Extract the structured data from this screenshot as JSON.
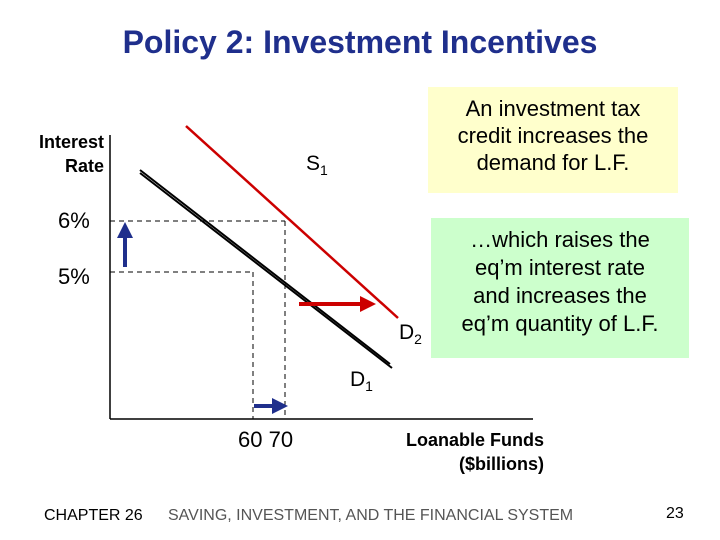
{
  "title": "Policy 2:  Investment Incentives",
  "axes": {
    "y_label_line1": "Interest",
    "y_label_line2": "Rate",
    "x_label_line1": "Loanable Funds",
    "x_label_line2": "($billions)",
    "y_ticks": [
      "6%",
      "5%"
    ],
    "x_ticks": "60 70"
  },
  "curves": {
    "supply_label": "S",
    "supply_sub": "1",
    "demand1_label": "D",
    "demand1_sub": "1",
    "demand2_label": "D",
    "demand2_sub": "2"
  },
  "notes": {
    "note1": [
      "An investment tax",
      "credit increases the",
      "demand for L.F."
    ],
    "note2": [
      "…which raises the",
      "eq’m interest rate",
      "and increases the",
      "eq’m quantity of L.F."
    ]
  },
  "colors": {
    "title": "#1f2f8c",
    "demand2_line": "#cc0000",
    "shift_arrow": "#cc0000",
    "move_arrow": "#1f2f8c",
    "note1_bg": "#ffffcc",
    "note2_bg": "#ccffcc"
  },
  "footer": {
    "chapter": "CHAPTER 26",
    "section": "SAVING, INVESTMENT, AND THE FINANCIAL SYSTEM",
    "page": "23"
  }
}
